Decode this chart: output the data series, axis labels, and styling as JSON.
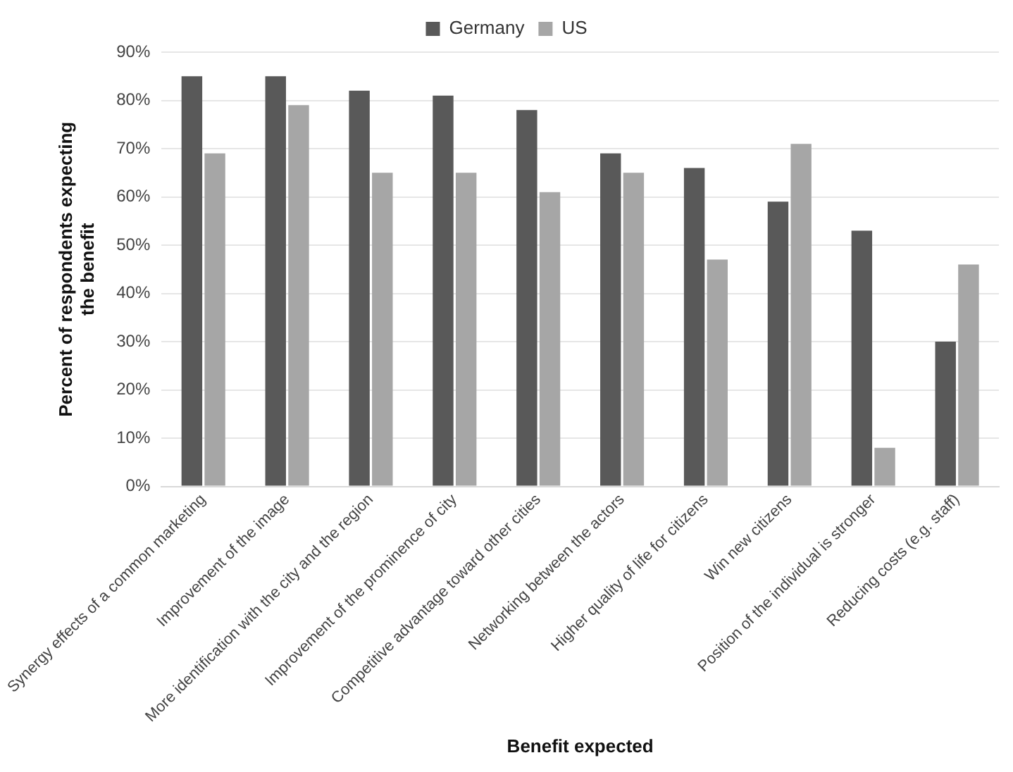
{
  "chart_data": {
    "type": "bar",
    "xlabel": "Benefit expected",
    "ylabel": "Percent of respondents expecting the benefit",
    "categories": [
      "Synergy effects of a common marketing",
      "Improvement of the image",
      "More identification with the city and the region",
      "Improvement of the prominence of city",
      "Competitive advantage toward other cities",
      "Networking between the actors",
      "Higher quality of life for citizens",
      "Win new citizens",
      "Position of the individual is stronger",
      "Reducing costs (e.g. staff)"
    ],
    "series": [
      {
        "name": "Germany",
        "color": "#595959",
        "values": [
          85,
          85,
          82,
          81,
          78,
          69,
          66,
          59,
          53,
          30
        ]
      },
      {
        "name": "US",
        "color": "#a6a6a6",
        "values": [
          69,
          79,
          65,
          65,
          61,
          65,
          47,
          71,
          8,
          46
        ]
      }
    ],
    "ylim": [
      0,
      90
    ],
    "yticks": [
      {
        "value": 0,
        "label": "0%"
      },
      {
        "value": 10,
        "label": "10%"
      },
      {
        "value": 20,
        "label": "20%"
      },
      {
        "value": 30,
        "label": "30%"
      },
      {
        "value": 40,
        "label": "40%"
      },
      {
        "value": 50,
        "label": "50%"
      },
      {
        "value": 60,
        "label": "60%"
      },
      {
        "value": 70,
        "label": "70%"
      },
      {
        "value": 80,
        "label": "80%"
      },
      {
        "value": 90,
        "label": "90%"
      }
    ],
    "grid": "y",
    "legend": "top"
  }
}
